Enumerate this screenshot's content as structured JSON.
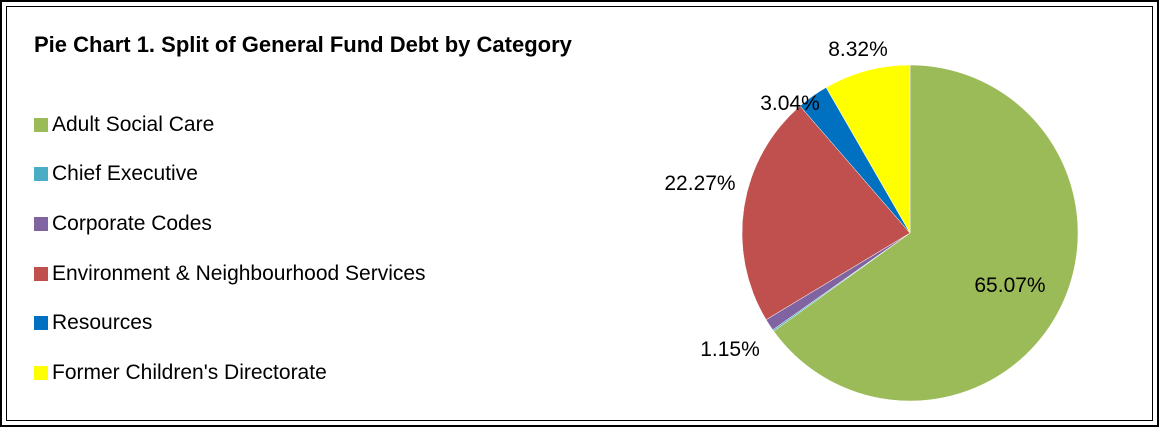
{
  "chart_data": {
    "type": "pie",
    "title": "Pie Chart 1. Split of General Fund Debt by Category",
    "legend_position": "left",
    "slices": [
      {
        "name": "Adult Social Care",
        "value": 65.07,
        "label": "65.07%",
        "color": "#9BBB59"
      },
      {
        "name": "Chief Executive",
        "value": 0.15,
        "label": "",
        "color": "#4BACC6"
      },
      {
        "name": "Corporate Codes",
        "value": 1.15,
        "label": "1.15%",
        "color": "#8064A2"
      },
      {
        "name": "Environment & Neighbourhood Services",
        "value": 22.27,
        "label": "22.27%",
        "color": "#C0504D"
      },
      {
        "name": "Resources",
        "value": 3.04,
        "label": "3.04%",
        "color": "#0070C0"
      },
      {
        "name": "Former Children's Directorate",
        "value": 8.32,
        "label": "8.32%",
        "color": "#FFFF00"
      }
    ]
  }
}
